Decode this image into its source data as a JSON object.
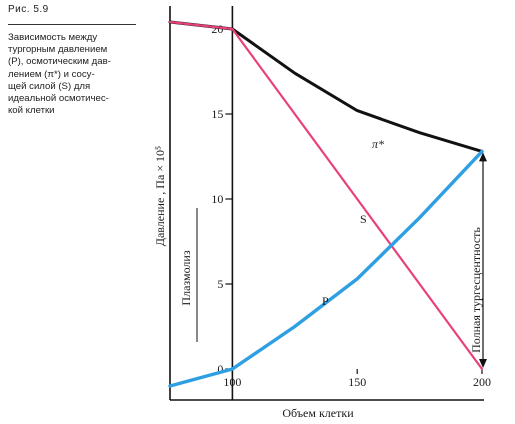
{
  "figure": {
    "label": "Рис. 5.9",
    "caption": "Зависимость между\nтургорным давлением\n(P), осмотическим дав-\nлением (π*) и сосу-\nщей силой (S) для\nидеальной осмотичес-\nкой клетки"
  },
  "chart_data": {
    "type": "line",
    "title": "",
    "xlabel": "Объем клетки",
    "ylabel": "Давление , Па × 10⁵",
    "xlim": [
      75,
      200
    ],
    "ylim": [
      0,
      22
    ],
    "x_ticks": [
      "100",
      "150",
      "200"
    ],
    "y_ticks": [
      "0",
      "5",
      "10",
      "15",
      "20"
    ],
    "grid": false,
    "colors": {
      "pi": "#111111",
      "s": "#e8417a",
      "p": "#2e9fe3",
      "axes": "#111111"
    },
    "series": [
      {
        "name": "π*",
        "x": [
          75,
          100,
          125,
          150,
          175,
          200
        ],
        "y": [
          22,
          20,
          17.4,
          15.2,
          13.9,
          12.8
        ]
      },
      {
        "name": "S",
        "x": [
          75,
          100,
          125,
          150,
          175,
          200
        ],
        "y": [
          25.7,
          20,
          15,
          10,
          5,
          0
        ]
      },
      {
        "name": "P",
        "x": [
          75,
          100,
          125,
          150,
          175,
          200
        ],
        "y": [
          -1,
          0,
          2.5,
          5.3,
          8.9,
          12.8
        ]
      }
    ],
    "annotations": {
      "plasmolysis": "Плазмолиз",
      "full_turgor": "Полная тургесцентность"
    }
  }
}
